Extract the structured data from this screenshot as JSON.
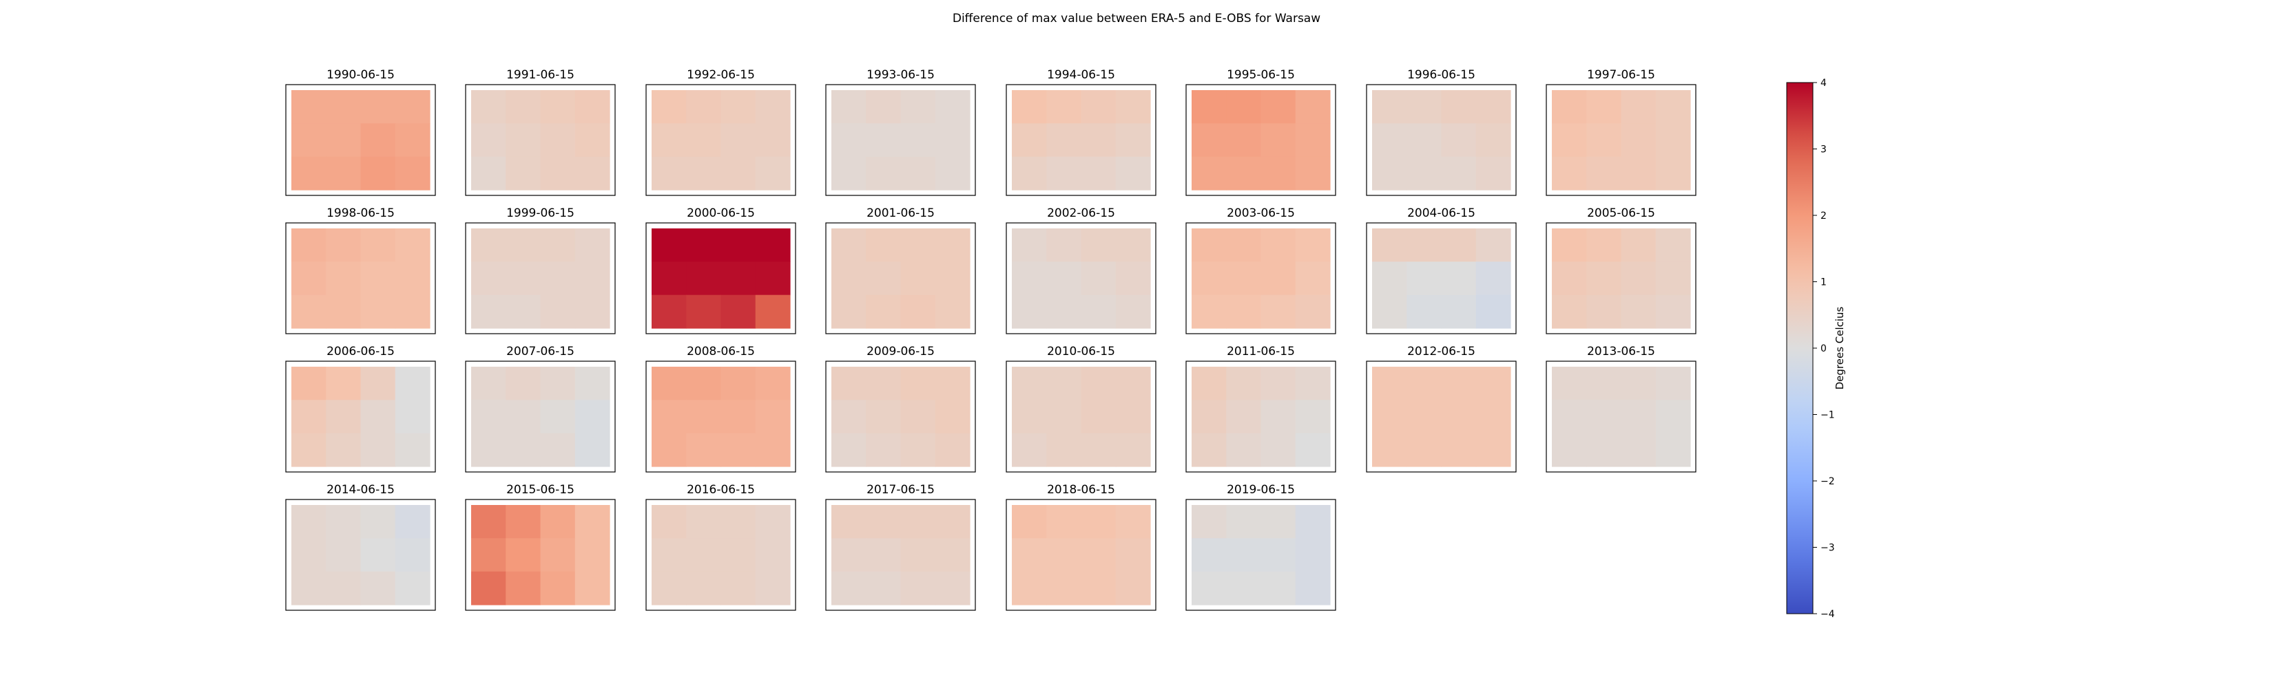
{
  "chart_data": {
    "type": "heatmap",
    "title": "Difference of max value between ERA-5 and E-OBS for Warsaw",
    "colorbar": {
      "label": "Degrees Celcius",
      "colormap": "coolwarm",
      "range": [
        -4,
        4
      ],
      "ticks": [
        "4",
        "3",
        "2",
        "1",
        "0",
        "−1",
        "−2",
        "−3",
        "−4"
      ]
    },
    "panels": [
      {
        "label": "1990-06-15",
        "values": [
          [
            1.6,
            1.6,
            1.6,
            1.6
          ],
          [
            1.6,
            1.6,
            1.8,
            1.7
          ],
          [
            1.7,
            1.7,
            1.9,
            1.8
          ]
        ]
      },
      {
        "label": "1991-06-15",
        "values": [
          [
            0.5,
            0.6,
            0.7,
            0.8
          ],
          [
            0.4,
            0.5,
            0.6,
            0.7
          ],
          [
            0.3,
            0.5,
            0.6,
            0.6
          ]
        ]
      },
      {
        "label": "1992-06-15",
        "values": [
          [
            0.9,
            0.8,
            0.7,
            0.6
          ],
          [
            0.7,
            0.7,
            0.6,
            0.6
          ],
          [
            0.6,
            0.6,
            0.6,
            0.5
          ]
        ]
      },
      {
        "label": "1993-06-15",
        "values": [
          [
            0.3,
            0.4,
            0.3,
            0.2
          ],
          [
            0.2,
            0.2,
            0.2,
            0.2
          ],
          [
            0.2,
            0.3,
            0.3,
            0.2
          ]
        ]
      },
      {
        "label": "1994-06-15",
        "values": [
          [
            1.0,
            0.9,
            0.8,
            0.7
          ],
          [
            0.7,
            0.6,
            0.6,
            0.5
          ],
          [
            0.5,
            0.4,
            0.4,
            0.3
          ]
        ]
      },
      {
        "label": "1995-06-15",
        "values": [
          [
            2.0,
            2.0,
            1.9,
            1.6
          ],
          [
            1.8,
            1.8,
            1.7,
            1.6
          ],
          [
            1.7,
            1.7,
            1.7,
            1.6
          ]
        ]
      },
      {
        "label": "1996-06-15",
        "values": [
          [
            0.5,
            0.5,
            0.6,
            0.6
          ],
          [
            0.3,
            0.3,
            0.4,
            0.5
          ],
          [
            0.3,
            0.3,
            0.3,
            0.4
          ]
        ]
      },
      {
        "label": "1997-06-15",
        "values": [
          [
            1.1,
            1.0,
            0.8,
            0.7
          ],
          [
            1.0,
            0.9,
            0.8,
            0.7
          ],
          [
            0.9,
            0.8,
            0.8,
            0.7
          ]
        ]
      },
      {
        "label": "1998-06-15",
        "values": [
          [
            1.4,
            1.3,
            1.2,
            1.1
          ],
          [
            1.3,
            1.2,
            1.1,
            1.1
          ],
          [
            1.2,
            1.2,
            1.1,
            1.1
          ]
        ]
      },
      {
        "label": "1999-06-15",
        "values": [
          [
            0.5,
            0.5,
            0.5,
            0.4
          ],
          [
            0.4,
            0.4,
            0.4,
            0.4
          ],
          [
            0.3,
            0.3,
            0.4,
            0.4
          ]
        ]
      },
      {
        "label": "2000-06-15",
        "values": [
          [
            4.0,
            4.0,
            4.0,
            4.0
          ],
          [
            3.9,
            3.9,
            3.9,
            3.9
          ],
          [
            3.5,
            3.4,
            3.5,
            3.0
          ]
        ]
      },
      {
        "label": "2001-06-15",
        "values": [
          [
            0.6,
            0.7,
            0.7,
            0.7
          ],
          [
            0.6,
            0.6,
            0.7,
            0.7
          ],
          [
            0.6,
            0.7,
            0.8,
            0.7
          ]
        ]
      },
      {
        "label": "2002-06-15",
        "values": [
          [
            0.3,
            0.4,
            0.5,
            0.5
          ],
          [
            0.2,
            0.2,
            0.3,
            0.4
          ],
          [
            0.2,
            0.2,
            0.2,
            0.3
          ]
        ]
      },
      {
        "label": "2003-06-15",
        "values": [
          [
            1.2,
            1.2,
            1.1,
            1.0
          ],
          [
            1.1,
            1.1,
            1.1,
            0.9
          ],
          [
            1.0,
            1.0,
            0.9,
            0.8
          ]
        ]
      },
      {
        "label": "2004-06-15",
        "values": [
          [
            0.6,
            0.6,
            0.6,
            0.4
          ],
          [
            0.1,
            0.0,
            0.0,
            -0.2
          ],
          [
            0.1,
            -0.1,
            -0.1,
            -0.3
          ]
        ]
      },
      {
        "label": "2005-06-15",
        "values": [
          [
            1.0,
            0.9,
            0.7,
            0.5
          ],
          [
            0.8,
            0.7,
            0.6,
            0.5
          ],
          [
            0.7,
            0.6,
            0.5,
            0.4
          ]
        ]
      },
      {
        "label": "2006-06-15",
        "values": [
          [
            1.2,
            1.0,
            0.6,
            0.0
          ],
          [
            0.8,
            0.6,
            0.3,
            0.0
          ],
          [
            0.7,
            0.5,
            0.3,
            0.1
          ]
        ]
      },
      {
        "label": "2007-06-15",
        "values": [
          [
            0.3,
            0.4,
            0.3,
            0.1
          ],
          [
            0.2,
            0.2,
            0.1,
            -0.1
          ],
          [
            0.2,
            0.2,
            0.2,
            -0.1
          ]
        ]
      },
      {
        "label": "2008-06-15",
        "values": [
          [
            1.7,
            1.7,
            1.6,
            1.5
          ],
          [
            1.5,
            1.5,
            1.5,
            1.4
          ],
          [
            1.5,
            1.4,
            1.4,
            1.4
          ]
        ]
      },
      {
        "label": "2009-06-15",
        "values": [
          [
            0.6,
            0.6,
            0.7,
            0.7
          ],
          [
            0.4,
            0.5,
            0.6,
            0.7
          ],
          [
            0.3,
            0.4,
            0.5,
            0.6
          ]
        ]
      },
      {
        "label": "2010-06-15",
        "values": [
          [
            0.5,
            0.5,
            0.6,
            0.6
          ],
          [
            0.5,
            0.5,
            0.6,
            0.6
          ],
          [
            0.4,
            0.5,
            0.5,
            0.5
          ]
        ]
      },
      {
        "label": "2011-06-15",
        "values": [
          [
            0.7,
            0.5,
            0.4,
            0.3
          ],
          [
            0.6,
            0.4,
            0.2,
            0.1
          ],
          [
            0.5,
            0.3,
            0.2,
            0.0
          ]
        ]
      },
      {
        "label": "2012-06-15",
        "values": [
          [
            0.9,
            0.9,
            0.9,
            0.9
          ],
          [
            0.9,
            0.9,
            0.9,
            0.9
          ],
          [
            0.9,
            0.9,
            0.9,
            0.9
          ]
        ]
      },
      {
        "label": "2013-06-15",
        "values": [
          [
            0.3,
            0.3,
            0.3,
            0.2
          ],
          [
            0.2,
            0.2,
            0.2,
            0.1
          ],
          [
            0.2,
            0.2,
            0.2,
            0.1
          ]
        ]
      },
      {
        "label": "2014-06-15",
        "values": [
          [
            0.3,
            0.2,
            0.1,
            -0.2
          ],
          [
            0.3,
            0.2,
            0.0,
            -0.1
          ],
          [
            0.3,
            0.3,
            0.2,
            0.0
          ]
        ]
      },
      {
        "label": "2015-06-15",
        "values": [
          [
            2.5,
            2.2,
            1.7,
            1.2
          ],
          [
            2.3,
            2.0,
            1.6,
            1.2
          ],
          [
            2.7,
            2.2,
            1.7,
            1.2
          ]
        ]
      },
      {
        "label": "2016-06-15",
        "values": [
          [
            0.6,
            0.5,
            0.5,
            0.4
          ],
          [
            0.5,
            0.5,
            0.5,
            0.4
          ],
          [
            0.5,
            0.5,
            0.5,
            0.4
          ]
        ]
      },
      {
        "label": "2017-06-15",
        "values": [
          [
            0.6,
            0.6,
            0.6,
            0.6
          ],
          [
            0.4,
            0.4,
            0.5,
            0.5
          ],
          [
            0.3,
            0.3,
            0.4,
            0.4
          ]
        ]
      },
      {
        "label": "2018-06-15",
        "values": [
          [
            1.1,
            1.0,
            1.0,
            0.9
          ],
          [
            0.9,
            0.9,
            0.9,
            0.8
          ],
          [
            0.9,
            0.9,
            0.9,
            0.8
          ]
        ]
      },
      {
        "label": "2019-06-15",
        "values": [
          [
            0.2,
            0.1,
            0.1,
            -0.2
          ],
          [
            -0.1,
            -0.1,
            -0.1,
            -0.2
          ],
          [
            0.0,
            0.0,
            0.0,
            -0.2
          ]
        ]
      }
    ]
  }
}
